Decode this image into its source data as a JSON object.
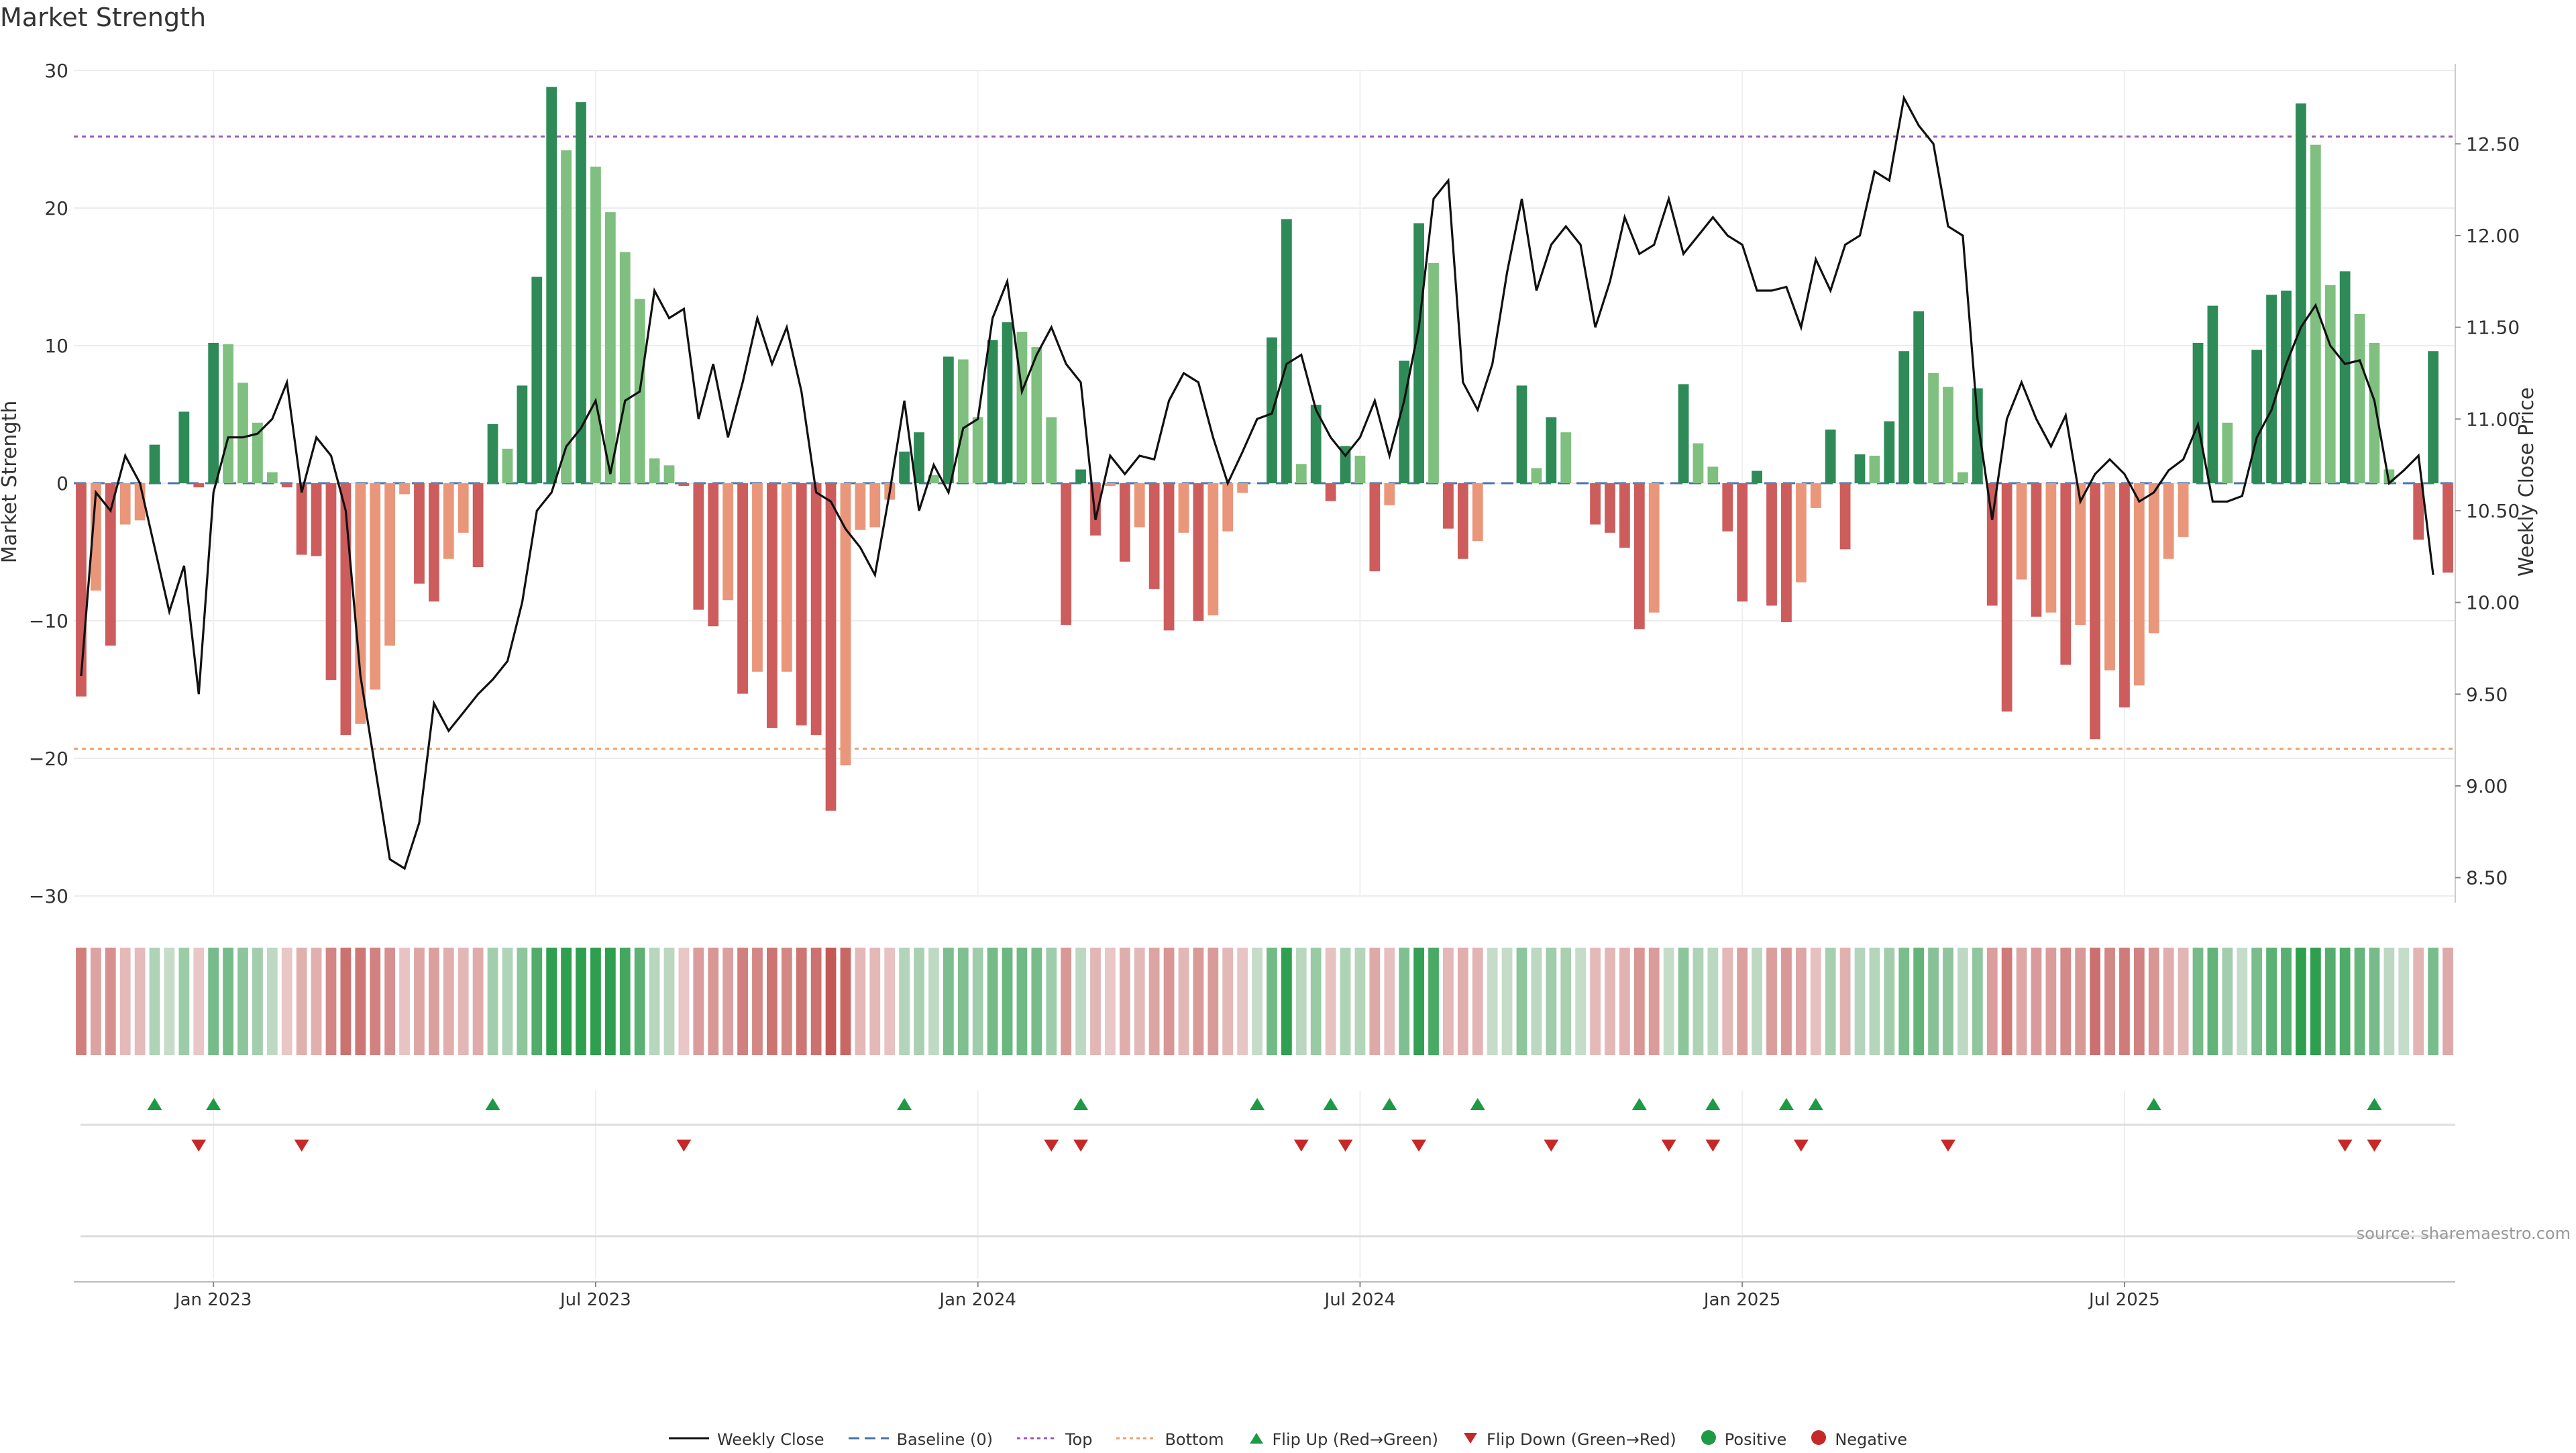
{
  "title": "Market Strength",
  "source": "source: sharemaestro.com",
  "colors": {
    "pos_strong": "#2e8b57",
    "pos_weak": "#7fbf7f",
    "neg_strong": "#cd5c5c",
    "neg_weak": "#e9967a",
    "line": "#111111",
    "baseline": "#4a74a8",
    "top": "#9b59b6",
    "bottom": "#f0a070",
    "flip_up": "#1e9a46",
    "flip_down": "#c62828"
  },
  "legend": [
    {
      "key": "line",
      "label": "Weekly Close"
    },
    {
      "key": "baseline",
      "label": "Baseline (0)"
    },
    {
      "key": "top",
      "label": "Top"
    },
    {
      "key": "bottom",
      "label": "Bottom"
    },
    {
      "key": "flip_up",
      "label": "Flip Up (Red→Green)"
    },
    {
      "key": "flip_down",
      "label": "Flip Down (Green→Red)"
    },
    {
      "key": "positive",
      "label": "Positive"
    },
    {
      "key": "negative",
      "label": "Negative"
    }
  ],
  "chart_data": {
    "type": "bar",
    "title": "Market Strength",
    "ylabel": "Market Strength",
    "y2label": "Weekly Close Price",
    "ylim": [
      -30,
      30
    ],
    "y2lim": [
      8.4,
      12.9
    ],
    "yticks": [
      -30,
      -20,
      -10,
      0,
      10,
      20,
      30
    ],
    "y2ticks": [
      8.5,
      9.0,
      9.5,
      10.0,
      10.5,
      11.0,
      11.5,
      12.0,
      12.5
    ],
    "top_level": 25.2,
    "bottom_level": -19.3,
    "baseline": 0,
    "x_ticks": [
      {
        "label": "Jan 2023",
        "index": 9
      },
      {
        "label": "Jul 2023",
        "index": 35
      },
      {
        "label": "Jan 2024",
        "index": 61
      },
      {
        "label": "Jul 2024",
        "index": 87
      },
      {
        "label": "Jan 2025",
        "index": 113
      },
      {
        "label": "Jul 2025",
        "index": 139
      }
    ],
    "strength": [
      -15.5,
      -7.8,
      -11.8,
      -3,
      -2.7,
      2.8,
      0,
      5.2,
      -0.3,
      10.2,
      10.1,
      7.3,
      4.4,
      0.8,
      -0.3,
      -5.2,
      -5.3,
      -14.3,
      -18.3,
      -17.5,
      -15,
      -11.8,
      -0.8,
      -7.3,
      -8.6,
      -5.5,
      -3.6,
      -6.1,
      4.3,
      2.5,
      7.1,
      15,
      28.8,
      24.2,
      27.7,
      23,
      19.7,
      16.8,
      13.4,
      1.8,
      1.3,
      -0.2,
      -9.2,
      -10.4,
      -8.5,
      -15.3,
      -13.7,
      -17.8,
      -13.7,
      -17.6,
      -18.3,
      -23.8,
      -20.5,
      -3.4,
      -3.2,
      -1.2,
      2.3,
      3.7,
      0.6,
      9.2,
      9,
      4.8,
      10.4,
      11.7,
      11,
      9.9,
      4.8,
      -10.3,
      1,
      -3.8,
      -0.2,
      -5.7,
      -3.2,
      -7.7,
      -10.7,
      -3.6,
      -10,
      -9.6,
      -3.5,
      -0.7,
      0,
      10.6,
      19.2,
      1.4,
      5.7,
      -1.3,
      2.7,
      2,
      -6.4,
      -1.6,
      8.9,
      18.9,
      16,
      -3.3,
      -5.5,
      -4.2,
      0,
      0,
      7.1,
      1.1,
      4.8,
      3.7,
      0,
      -3,
      -3.6,
      -4.7,
      -10.6,
      -9.4,
      0,
      7.2,
      2.9,
      1.2,
      -3.5,
      -8.6,
      0.9,
      -8.9,
      -10.1,
      -7.2,
      -1.8,
      3.9,
      -4.8,
      2.1,
      2,
      4.5,
      9.6,
      12.5,
      8,
      7,
      0.8,
      6.9,
      -8.9,
      -16.6,
      -7,
      -9.7,
      -9.4,
      -13.2,
      -10.3,
      -18.6,
      -13.6,
      -16.3,
      -14.7,
      -10.9,
      -5.5,
      -3.9,
      10.2,
      12.9,
      4.4,
      0,
      9.7,
      13.7,
      14,
      27.6,
      24.6,
      14.4,
      15.4,
      12.3,
      10.2,
      1,
      0,
      -4.1,
      9.6,
      -6.5
    ],
    "weekly_close": [
      9.6,
      10.6,
      10.5,
      10.8,
      10.65,
      10.3,
      9.95,
      10.2,
      9.5,
      10.6,
      10.9,
      10.9,
      10.92,
      11.0,
      11.2,
      10.6,
      10.9,
      10.8,
      10.5,
      9.6,
      9.1,
      8.6,
      8.55,
      8.8,
      9.45,
      9.3,
      9.4,
      9.5,
      9.58,
      9.68,
      10.0,
      10.5,
      10.6,
      10.85,
      10.95,
      11.1,
      10.7,
      11.1,
      11.15,
      11.7,
      11.55,
      11.6,
      11.0,
      11.3,
      10.9,
      11.2,
      11.55,
      11.3,
      11.5,
      11.15,
      10.6,
      10.55,
      10.4,
      10.3,
      10.15,
      10.6,
      11.1,
      10.5,
      10.75,
      10.6,
      10.95,
      11.0,
      11.55,
      11.75,
      11.15,
      11.35,
      11.5,
      11.3,
      11.2,
      10.45,
      10.8,
      10.7,
      10.8,
      10.78,
      11.1,
      11.25,
      11.2,
      10.9,
      10.65,
      10.82,
      11.0,
      11.03,
      11.3,
      11.35,
      11.05,
      10.9,
      10.8,
      10.9,
      11.1,
      10.8,
      11.1,
      11.5,
      12.2,
      12.3,
      11.2,
      11.05,
      11.3,
      11.8,
      12.2,
      11.7,
      11.95,
      12.05,
      11.95,
      11.5,
      11.75,
      12.1,
      11.9,
      11.95,
      12.2,
      11.9,
      12.0,
      12.1,
      12.0,
      11.95,
      11.7,
      11.7,
      11.72,
      11.5,
      11.87,
      11.7,
      11.95,
      12.0,
      12.35,
      12.3,
      12.75,
      12.6,
      12.5,
      12.05,
      12.0,
      11.0,
      10.45,
      11.0,
      11.2,
      11.0,
      10.85,
      11.02,
      10.55,
      10.7,
      10.78,
      10.7,
      10.55,
      10.6,
      10.72,
      10.78,
      10.97,
      10.55,
      10.55,
      10.58,
      10.9,
      11.05,
      11.3,
      11.5,
      11.62,
      11.4,
      11.3,
      11.32,
      11.1,
      10.65,
      10.72,
      10.8,
      10.15
    ],
    "flip_up": [
      5,
      9,
      28,
      56,
      68,
      80,
      85,
      89,
      95,
      106,
      111,
      116,
      118,
      141,
      156
    ],
    "flip_down": [
      8,
      15,
      41,
      66,
      68,
      83,
      86,
      91,
      100,
      108,
      111,
      117,
      127,
      154,
      156
    ]
  }
}
